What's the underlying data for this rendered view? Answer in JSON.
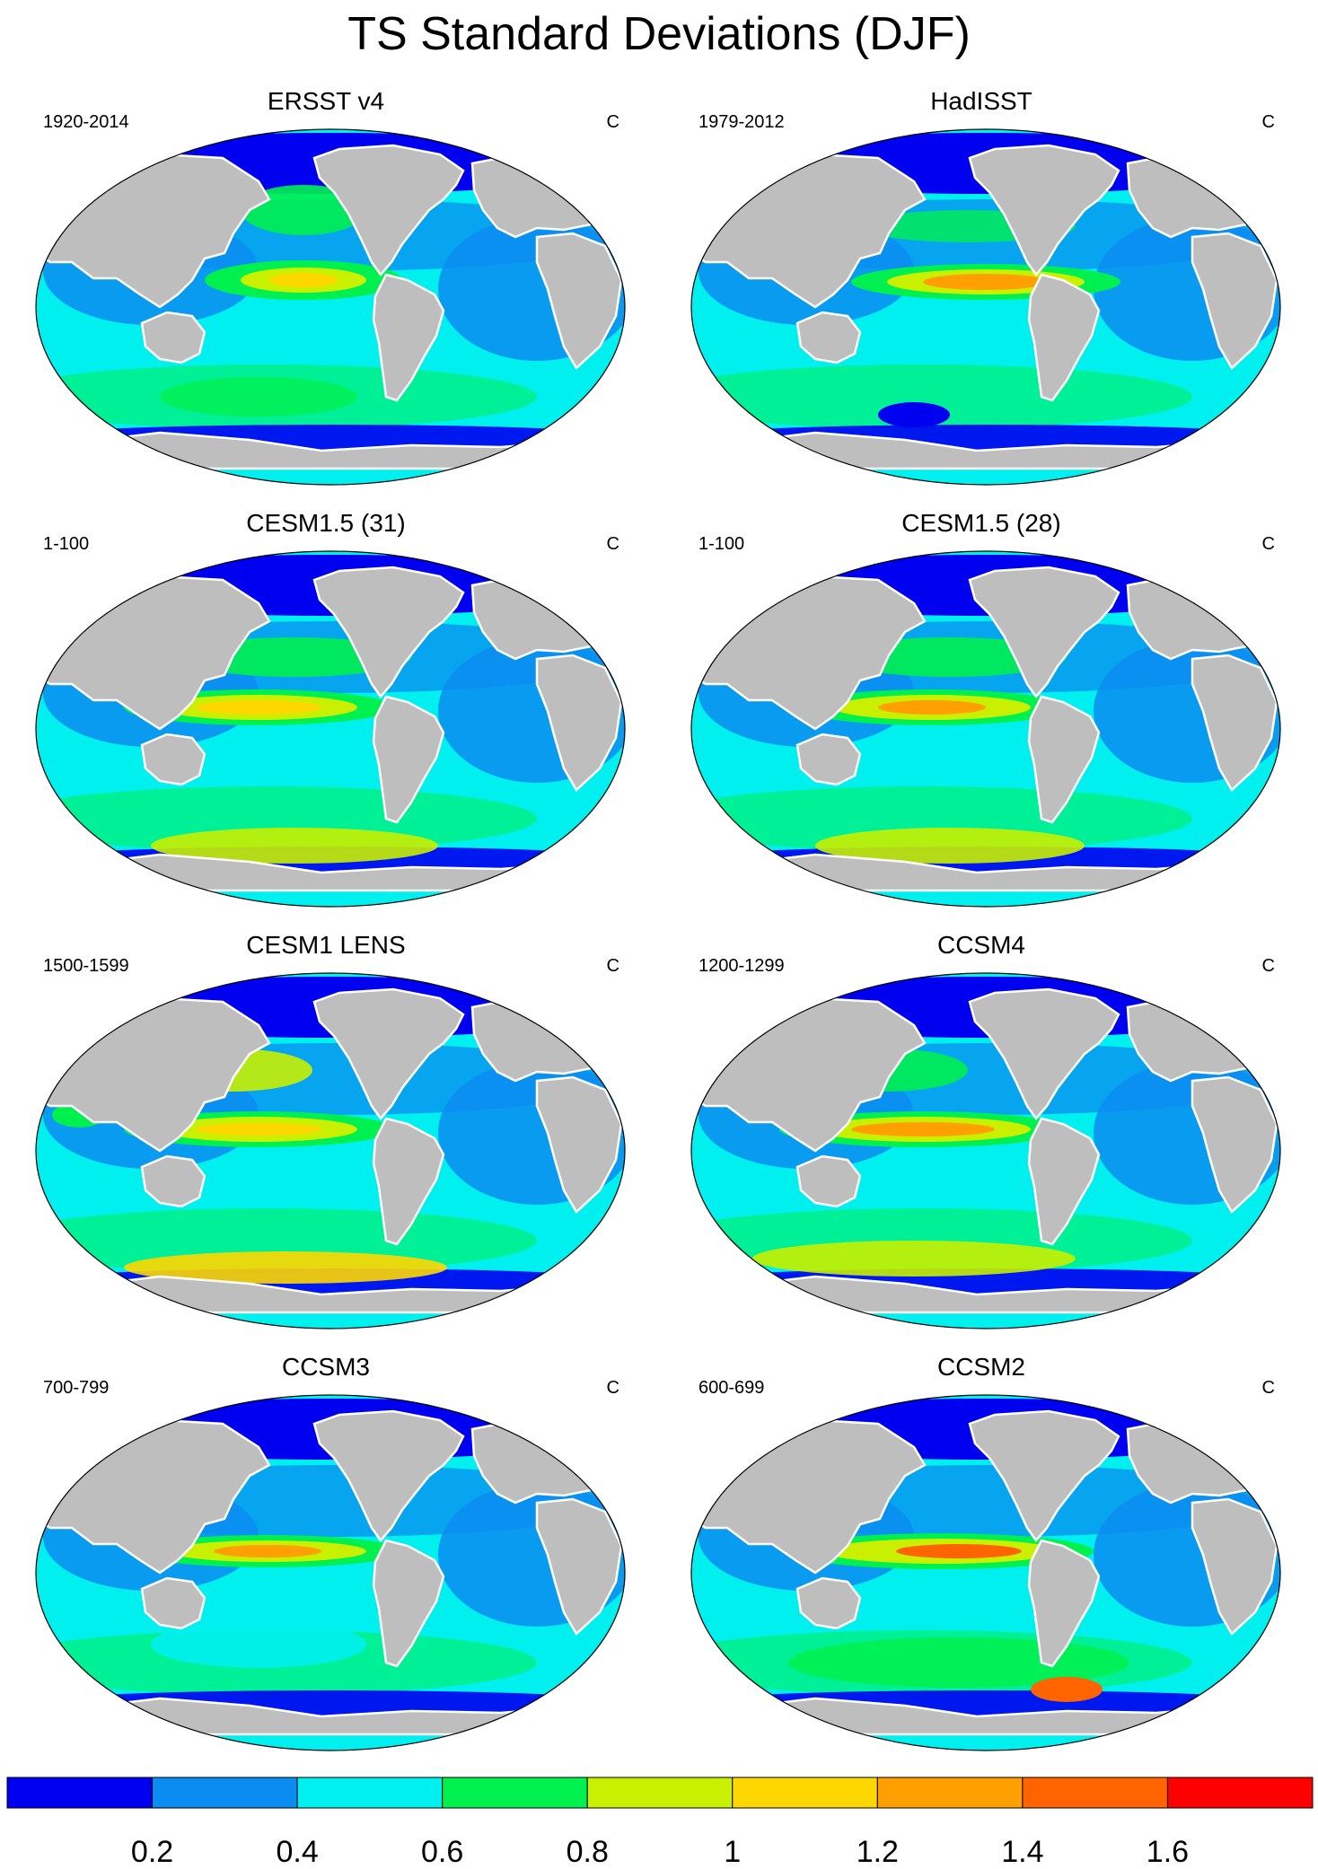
{
  "title": "TS Standard Deviations (DJF)",
  "panels": [
    {
      "title": "ERSST v4",
      "years": "1920-2014",
      "units": "C"
    },
    {
      "title": "HadISST",
      "years": "1979-2012",
      "units": "C"
    },
    {
      "title": "CESM1.5 (31)",
      "years": "1-100",
      "units": "C"
    },
    {
      "title": "CESM1.5 (28)",
      "years": "1-100",
      "units": "C"
    },
    {
      "title": "CESM1 LENS",
      "years": "1500-1599",
      "units": "C"
    },
    {
      "title": "CCSM4",
      "years": "1200-1299",
      "units": "C"
    },
    {
      "title": "CCSM3",
      "years": "700-799",
      "units": "C"
    },
    {
      "title": "CCSM2",
      "years": "600-699",
      "units": "C"
    }
  ],
  "colorbar": {
    "colors": [
      "#0000f0",
      "#0a8cf0",
      "#00f0f0",
      "#00f050",
      "#c8f000",
      "#ffd700",
      "#ffa000",
      "#ff6400",
      "#ff0000"
    ],
    "labels": [
      "0.2",
      "0.4",
      "0.6",
      "0.8",
      "1",
      "1.2",
      "1.4",
      "1.6"
    ]
  },
  "map_colors": {
    "land": "#bebebe",
    "ocean_base": "#00f0f0",
    "outline": "#000000"
  }
}
